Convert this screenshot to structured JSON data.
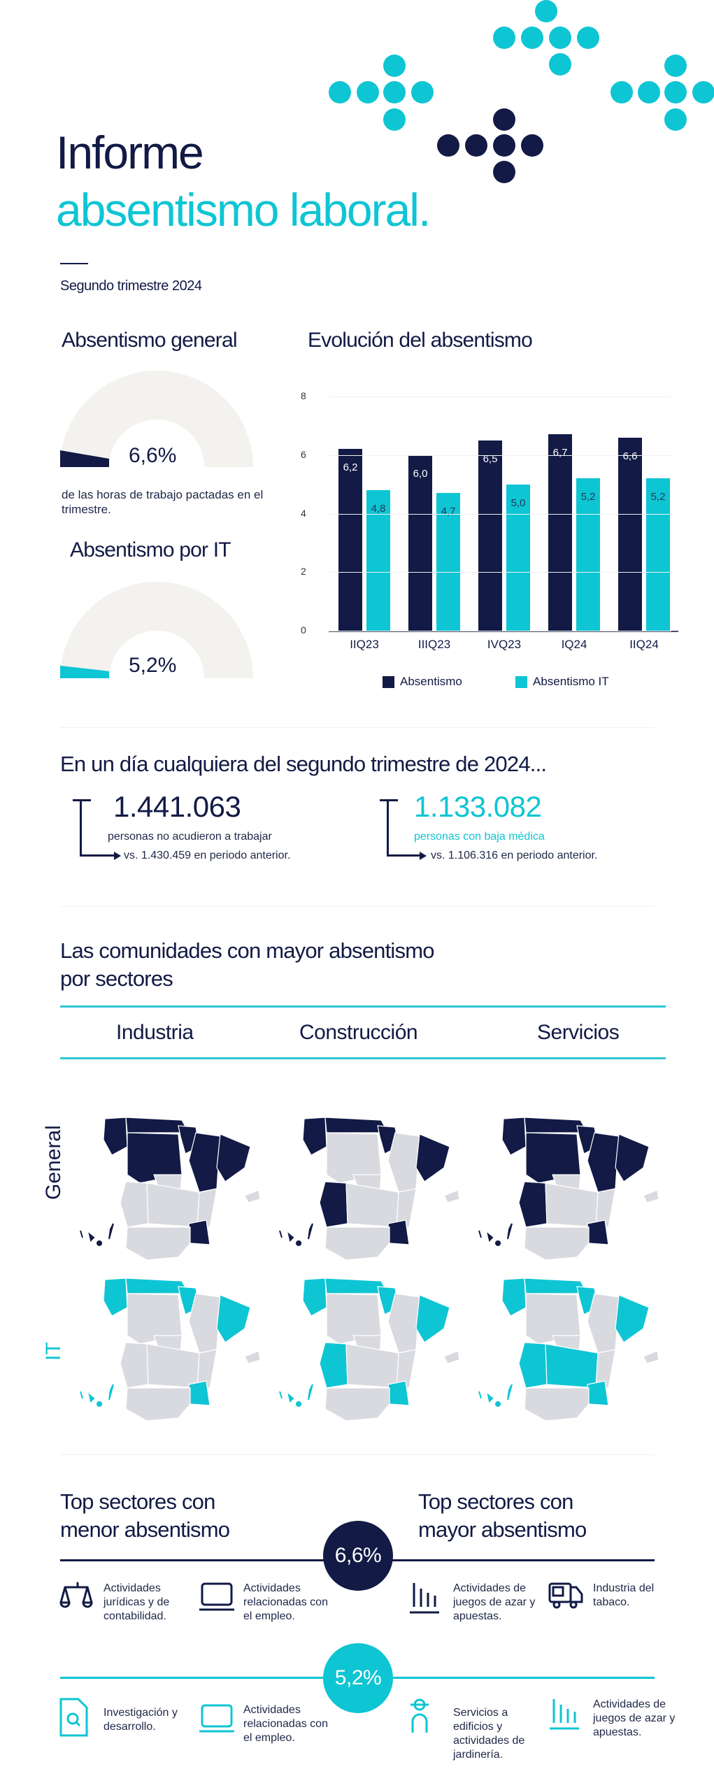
{
  "header": {
    "title_line1": "Informe",
    "title_line2": "absentismo laboral.",
    "subtitle": "Segundo trimestre 2024"
  },
  "colors": {
    "navy": "#121a45",
    "cyan": "#0ec5d3",
    "gauge_bg": "#f3f2ee",
    "map_gray": "#d9dadf"
  },
  "gauges": {
    "general": {
      "title": "Absentismo general",
      "value": "6,6%",
      "caption": "de las horas de trabajo pactadas en el trimestre."
    },
    "it": {
      "title": "Absentismo por IT",
      "value": "5,2%"
    }
  },
  "chart_data": {
    "type": "bar",
    "title": "Evolución del absentismo",
    "categories": [
      "IIQ23",
      "IIIQ23",
      "IVQ23",
      "IQ24",
      "IIQ24"
    ],
    "series": [
      {
        "name": "Absentismo",
        "color": "#121a45",
        "values": [
          6.2,
          6.0,
          6.5,
          6.7,
          6.6
        ],
        "labels": [
          "6,2",
          "6,0",
          "6,5",
          "6,7",
          "6,6"
        ]
      },
      {
        "name": "Absentismo IT",
        "color": "#0ec5d3",
        "values": [
          4.8,
          4.7,
          5.0,
          5.2,
          5.2
        ],
        "labels": [
          "4,8",
          "4,7",
          "5,0",
          "5,2",
          "5,2"
        ]
      }
    ],
    "xlabel": "",
    "ylabel": "",
    "ylim": [
      0,
      8
    ],
    "yticks": [
      "0",
      "2",
      "4",
      "6",
      "8"
    ],
    "grid": true,
    "legend_position": "bottom"
  },
  "day": {
    "title": "En un día cualquiera del segundo trimestre de 2024...",
    "stat1": {
      "value": "1.441.063",
      "label": "personas no acudieron a trabajar",
      "compare": "vs. 1.430.459 en periodo anterior."
    },
    "stat2": {
      "value": "1.133.082",
      "label": "personas con baja médica",
      "compare": "vs. 1.106.316 en periodo anterior."
    }
  },
  "maps": {
    "title_line1": "Las comunidades con mayor absentismo",
    "title_line2": "por sectores",
    "sectors": [
      "Industria",
      "Construcción",
      "Servicios"
    ],
    "rows": [
      "General",
      "IT"
    ]
  },
  "top": {
    "low_title_1": "Top sectores con",
    "low_title_2": "menor absentismo",
    "high_title_1": "Top sectores con",
    "high_title_2": "mayor absentismo",
    "general_value": "6,6%",
    "it_value": "5,2%",
    "general_low": [
      {
        "icon": "scales-icon",
        "text": "Actividades jurídicas y de contabilidad."
      },
      {
        "icon": "laptop-icon",
        "text": "Actividades relacionadas con el empleo."
      }
    ],
    "general_high": [
      {
        "icon": "bar-chart-icon",
        "text": "Actividades de juegos de azar y apuestas."
      },
      {
        "icon": "truck-icon",
        "text": "Industria del tabaco."
      }
    ],
    "it_low": [
      {
        "icon": "document-search-icon",
        "text": "Investigación y desarrollo."
      },
      {
        "icon": "laptop-icon",
        "text": "Actividades relacionadas con el empleo."
      }
    ],
    "it_high": [
      {
        "icon": "worker-icon",
        "text": "Servicios a edificios y actividades de jardinería."
      },
      {
        "icon": "bar-chart-icon",
        "text": "Actividades de juegos de azar y apuestas."
      }
    ]
  }
}
